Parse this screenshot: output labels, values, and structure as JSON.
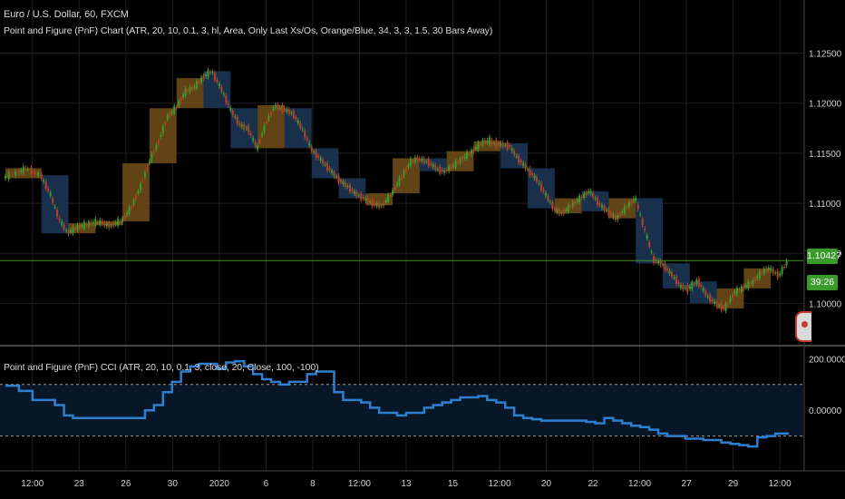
{
  "header": {
    "symbol_title": "Euro / U.S. Dollar, 60, FXCM",
    "indicator_title": "Point and Figure (PnF) Chart (ATR, 20, 10, 0.1, 3, hl, Area, Only Last Xs/Os, Orange/Blue, 34, 3, 3, 1.5, 30 Bars Away)"
  },
  "price_badges": {
    "last_price": "1.10427",
    "countdown": "39:26"
  },
  "cci_panel": {
    "title": "Point and Figure (PnF) CCI (ATR, 20, 10, 0.1, 3, close, 20, Close, 100, -100)"
  },
  "colors": {
    "background": "#000000",
    "grid": "#1f1f1f",
    "up_candle": "#3d9b2d",
    "down_candle": "#b8402a",
    "box_up_fill": "#6b4a17",
    "box_down_fill": "#1b3553",
    "cci_line": "#2f7fd0",
    "last_price_line": "#4a8f2a",
    "text": "#cfcfcf"
  },
  "chart_data": [
    {
      "type": "line",
      "title": "Euro / U.S. Dollar, 60, FXCM",
      "ylim": [
        1.0975,
        1.1265
      ],
      "y_ticks": [
        1.1,
        1.105,
        1.11,
        1.115,
        1.12,
        1.125
      ],
      "y_tick_labels": [
        "1.10000",
        "1.10500",
        "1.11000",
        "1.11500",
        "1.12000",
        "1.12500"
      ],
      "x_tick_labels": [
        "12:00",
        "23",
        "26",
        "30",
        "2020",
        "6",
        "8",
        "12:00",
        "13",
        "15",
        "12:00",
        "20",
        "22",
        "12:00",
        "27",
        "29",
        "12:00"
      ],
      "last_price": 1.10427,
      "series": [
        {
          "x": [
            0,
            3,
            5,
            8,
            10,
            12,
            14,
            16,
            18,
            20,
            22,
            24,
            26,
            28,
            30,
            32,
            34,
            36,
            38,
            40,
            42,
            44,
            46,
            48,
            50,
            52,
            54,
            56,
            58,
            60,
            62,
            64,
            66,
            68,
            70,
            72,
            74,
            76,
            78,
            80,
            82,
            84,
            86,
            88,
            90,
            92,
            94,
            96,
            98,
            100,
            102,
            104,
            106,
            108,
            110,
            112,
            114,
            116,
            118,
            120,
            122,
            124,
            126,
            128,
            130,
            132,
            134,
            136,
            138,
            140,
            142,
            144,
            146,
            148,
            150,
            152,
            154,
            156,
            158,
            160,
            162,
            164,
            166,
            168,
            170,
            172,
            174
          ],
          "values": [
            1.1125,
            1.113,
            1.1135,
            1.1128,
            1.111,
            1.1085,
            1.107,
            1.1075,
            1.1078,
            1.108,
            1.108,
            1.1078,
            1.1082,
            1.1095,
            1.1115,
            1.114,
            1.116,
            1.1185,
            1.1195,
            1.121,
            1.1215,
            1.1225,
            1.1232,
            1.1215,
            1.1195,
            1.118,
            1.1175,
            1.1155,
            1.118,
            1.1198,
            1.1195,
            1.119,
            1.1175,
            1.1155,
            1.1145,
            1.1135,
            1.1125,
            1.1118,
            1.111,
            1.1105,
            1.11,
            1.1098,
            1.111,
            1.1125,
            1.114,
            1.1145,
            1.1142,
            1.1135,
            1.1132,
            1.1138,
            1.1145,
            1.1152,
            1.116,
            1.1162,
            1.116,
            1.1158,
            1.1145,
            1.1135,
            1.1125,
            1.111,
            1.1095,
            1.109,
            1.1098,
            1.1105,
            1.1112,
            1.11,
            1.1092,
            1.1085,
            1.1095,
            1.1105,
            1.1075,
            1.1045,
            1.104,
            1.103,
            1.1018,
            1.1015,
            1.1022,
            1.1008,
            1.1,
            1.0995,
            1.101,
            1.1015,
            1.102,
            1.103,
            1.1035,
            1.1028,
            1.1043
          ]
        }
      ]
    },
    {
      "type": "line",
      "title": "Point and Figure (PnF) CCI (ATR, 20, 10, 0.1, 3, close, 20, Close, 100, -100)",
      "ylim": [
        -210,
        215
      ],
      "y_ticks": [
        200,
        0
      ],
      "y_tick_labels": [
        "200.00000",
        "0.00000"
      ],
      "bands": [
        100,
        -100
      ],
      "series": [
        {
          "x": [
            0,
            3,
            6,
            9,
            11,
            13,
            15,
            17,
            19,
            21,
            23,
            25,
            27,
            29,
            31,
            33,
            35,
            37,
            39,
            41,
            43,
            45,
            47,
            49,
            51,
            53,
            55,
            57,
            59,
            61,
            63,
            65,
            67,
            69,
            71,
            73,
            75,
            77,
            79,
            81,
            83,
            85,
            87,
            89,
            91,
            93,
            95,
            97,
            99,
            101,
            103,
            105,
            107,
            109,
            111,
            113,
            115,
            117,
            119,
            121,
            123,
            125,
            127,
            129,
            131,
            133,
            135,
            137,
            139,
            141,
            143,
            145,
            147,
            149,
            151,
            153,
            155,
            157,
            159,
            161,
            163,
            165,
            167,
            169,
            171,
            174
          ],
          "values": [
            95,
            75,
            40,
            40,
            20,
            -20,
            -30,
            -30,
            -30,
            -30,
            -30,
            -30,
            -30,
            -30,
            0,
            20,
            70,
            110,
            150,
            170,
            180,
            180,
            160,
            185,
            190,
            170,
            140,
            120,
            110,
            100,
            110,
            110,
            140,
            150,
            150,
            70,
            40,
            40,
            30,
            10,
            -10,
            -10,
            -20,
            -10,
            -10,
            10,
            20,
            30,
            40,
            50,
            50,
            55,
            40,
            30,
            10,
            -20,
            -30,
            -35,
            -40,
            -40,
            -40,
            -40,
            -40,
            -45,
            -50,
            -30,
            -40,
            -50,
            -60,
            -65,
            -75,
            -90,
            -100,
            -100,
            -110,
            -110,
            -115,
            -115,
            -125,
            -130,
            -135,
            -140,
            -105,
            -100,
            -90,
            -90
          ]
        }
      ]
    }
  ]
}
